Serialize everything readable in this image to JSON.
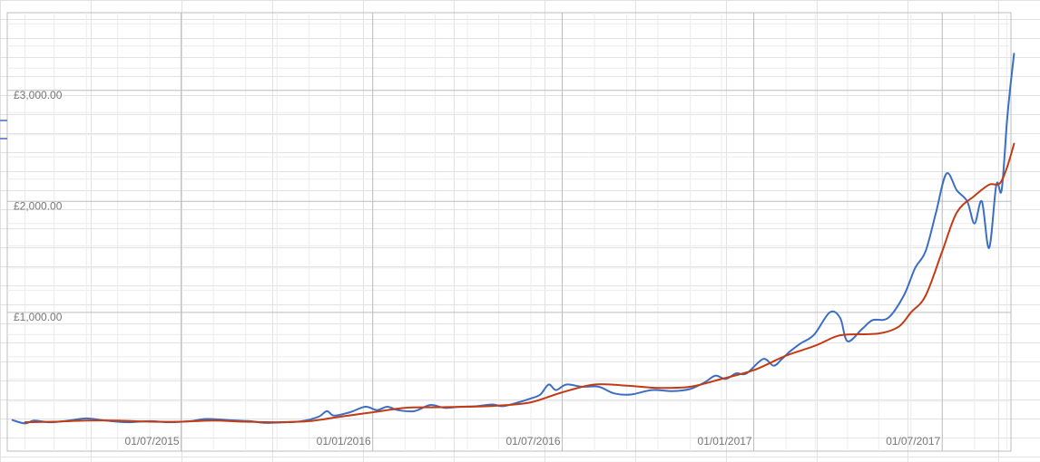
{
  "chart_data": {
    "type": "line",
    "title": "",
    "xlabel": "",
    "ylabel": "",
    "x_ticks": [
      "01/07/2015",
      "01/01/2016",
      "01/07/2016",
      "01/01/2017",
      "01/07/2017"
    ],
    "y_ticks": [
      "£1,000.00",
      "£2,000.00",
      "£3,000.00"
    ],
    "y_tick_values": [
      1000,
      2000,
      3000
    ],
    "xlim": [
      "2015-01-15",
      "2017-09-05"
    ],
    "ylim": [
      -250,
      3700
    ],
    "grid": true,
    "colors": {
      "blue": "#3c6fc4",
      "red": "#c23b14",
      "grid": "#d9d9d9",
      "frame": "#bdbdbd"
    },
    "series": [
      {
        "color": "#3c6fc4",
        "points": [
          [
            "2015-01-20",
            30
          ],
          [
            "2015-02-01",
            0
          ],
          [
            "2015-02-10",
            25
          ],
          [
            "2015-02-25",
            10
          ],
          [
            "2015-03-15",
            25
          ],
          [
            "2015-04-01",
            45
          ],
          [
            "2015-04-20",
            25
          ],
          [
            "2015-05-10",
            10
          ],
          [
            "2015-06-01",
            20
          ],
          [
            "2015-06-20",
            10
          ],
          [
            "2015-07-10",
            20
          ],
          [
            "2015-07-25",
            40
          ],
          [
            "2015-08-15",
            30
          ],
          [
            "2015-09-05",
            20
          ],
          [
            "2015-09-20",
            5
          ],
          [
            "2015-10-10",
            10
          ],
          [
            "2015-10-25",
            20
          ],
          [
            "2015-11-10",
            60
          ],
          [
            "2015-11-18",
            110
          ],
          [
            "2015-11-25",
            70
          ],
          [
            "2015-12-10",
            100
          ],
          [
            "2015-12-25",
            150
          ],
          [
            "2016-01-05",
            120
          ],
          [
            "2016-01-15",
            150
          ],
          [
            "2016-01-25",
            120
          ],
          [
            "2016-02-10",
            110
          ],
          [
            "2016-02-25",
            165
          ],
          [
            "2016-03-10",
            140
          ],
          [
            "2016-03-25",
            150
          ],
          [
            "2016-04-10",
            155
          ],
          [
            "2016-04-25",
            170
          ],
          [
            "2016-05-05",
            155
          ],
          [
            "2016-05-20",
            190
          ],
          [
            "2016-06-01",
            225
          ],
          [
            "2016-06-10",
            260
          ],
          [
            "2016-06-18",
            350
          ],
          [
            "2016-06-25",
            300
          ],
          [
            "2016-07-05",
            350
          ],
          [
            "2016-07-20",
            330
          ],
          [
            "2016-08-05",
            330
          ],
          [
            "2016-08-20",
            270
          ],
          [
            "2016-09-05",
            260
          ],
          [
            "2016-09-25",
            300
          ],
          [
            "2016-10-15",
            290
          ],
          [
            "2016-11-01",
            310
          ],
          [
            "2016-11-15",
            370
          ],
          [
            "2016-11-25",
            430
          ],
          [
            "2016-12-05",
            400
          ],
          [
            "2016-12-15",
            450
          ],
          [
            "2016-12-25",
            450
          ],
          [
            "2017-01-10",
            580
          ],
          [
            "2017-01-20",
            520
          ],
          [
            "2017-01-28",
            580
          ],
          [
            "2017-02-05",
            650
          ],
          [
            "2017-02-15",
            720
          ],
          [
            "2017-02-28",
            800
          ],
          [
            "2017-03-15",
            1000
          ],
          [
            "2017-03-25",
            950
          ],
          [
            "2017-04-01",
            740
          ],
          [
            "2017-04-15",
            850
          ],
          [
            "2017-04-25",
            930
          ],
          [
            "2017-05-10",
            950
          ],
          [
            "2017-05-25",
            1150
          ],
          [
            "2017-06-05",
            1400
          ],
          [
            "2017-06-15",
            1550
          ],
          [
            "2017-06-25",
            1900
          ],
          [
            "2017-07-05",
            2250
          ],
          [
            "2017-07-15",
            2100
          ],
          [
            "2017-07-25",
            2000
          ],
          [
            "2017-08-01",
            1800
          ],
          [
            "2017-08-08",
            2000
          ],
          [
            "2017-08-15",
            1580
          ],
          [
            "2017-08-22",
            2150
          ],
          [
            "2017-08-27",
            2100
          ],
          [
            "2017-09-01",
            2700
          ],
          [
            "2017-09-04",
            3000
          ],
          [
            "2017-09-08",
            3330
          ]
        ]
      },
      {
        "color": "#c23b14",
        "points": [
          [
            "2015-02-01",
            10
          ],
          [
            "2015-03-01",
            15
          ],
          [
            "2015-04-01",
            25
          ],
          [
            "2015-05-01",
            25
          ],
          [
            "2015-06-01",
            15
          ],
          [
            "2015-07-01",
            15
          ],
          [
            "2015-08-01",
            25
          ],
          [
            "2015-09-01",
            15
          ],
          [
            "2015-10-01",
            10
          ],
          [
            "2015-11-01",
            20
          ],
          [
            "2015-12-01",
            60
          ],
          [
            "2016-01-01",
            100
          ],
          [
            "2016-02-01",
            140
          ],
          [
            "2016-03-01",
            145
          ],
          [
            "2016-04-01",
            150
          ],
          [
            "2016-05-01",
            160
          ],
          [
            "2016-06-01",
            190
          ],
          [
            "2016-07-01",
            280
          ],
          [
            "2016-08-01",
            350
          ],
          [
            "2016-09-01",
            340
          ],
          [
            "2016-10-01",
            320
          ],
          [
            "2016-11-01",
            330
          ],
          [
            "2016-12-01",
            400
          ],
          [
            "2017-01-01",
            480
          ],
          [
            "2017-02-01",
            610
          ],
          [
            "2017-03-01",
            700
          ],
          [
            "2017-03-20",
            780
          ],
          [
            "2017-04-01",
            800
          ],
          [
            "2017-05-01",
            810
          ],
          [
            "2017-05-20",
            870
          ],
          [
            "2017-06-01",
            1000
          ],
          [
            "2017-06-15",
            1150
          ],
          [
            "2017-07-01",
            1550
          ],
          [
            "2017-07-15",
            1900
          ],
          [
            "2017-08-01",
            2050
          ],
          [
            "2017-08-15",
            2150
          ],
          [
            "2017-08-25",
            2160
          ],
          [
            "2017-09-01",
            2300
          ],
          [
            "2017-09-08",
            2520
          ]
        ]
      }
    ]
  }
}
